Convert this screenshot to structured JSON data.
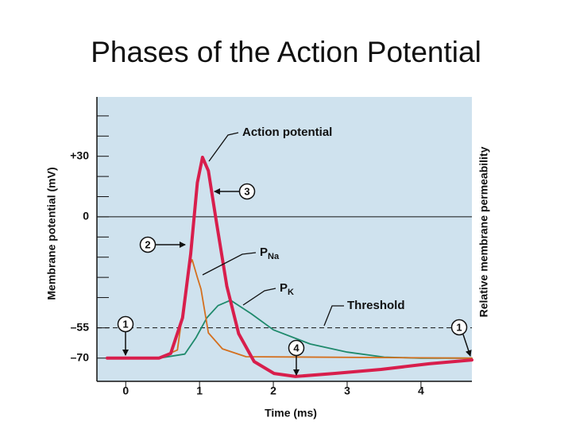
{
  "chart_data": {
    "type": "line",
    "title": "Phases of the Action Potential",
    "xlabel": "Time (ms)",
    "ylabel": "Membrane potential (mV)",
    "y2label": "Relative membrane permeability",
    "xlim": [
      -0.39,
      4.69
    ],
    "ylim": [
      -81.5,
      59.4
    ],
    "xticks": [
      0,
      1,
      2,
      3,
      4
    ],
    "yticks": [
      {
        "value": 30,
        "label": "+30"
      },
      0,
      {
        "value": -55,
        "label": "–55"
      },
      {
        "value": -70,
        "label": "–70"
      }
    ],
    "minor_yticks": [
      50,
      40,
      20,
      10,
      -10,
      -20,
      -30,
      -40
    ],
    "zero_line": 0,
    "threshold": {
      "value": -55,
      "label": "Threshold"
    },
    "series": [
      {
        "name": "Action potential",
        "color": "#d81e4c",
        "x": [
          -0.25,
          0.45,
          0.61,
          0.77,
          0.88,
          0.97,
          1.04,
          1.12,
          1.23,
          1.37,
          1.53,
          1.74,
          2.01,
          2.3,
          2.82,
          3.46,
          4.11,
          4.69
        ],
        "values": [
          -70,
          -70,
          -67.7,
          -50,
          -18.5,
          16.9,
          29.5,
          22.8,
          -2.8,
          -34.3,
          -57.9,
          -71.7,
          -77.6,
          -79.1,
          -77.6,
          -75.6,
          -72.8,
          -70.9
        ]
      },
      {
        "name": "P",
        "name_sub": "Na",
        "color": "#d4701f",
        "x": [
          -0.25,
          0.45,
          0.7,
          0.78,
          0.85,
          0.9,
          0.97,
          1.02,
          1.12,
          1.31,
          1.63,
          4.69
        ],
        "values": [
          -70,
          -70,
          -66,
          -45,
          -25,
          -21.3,
          -30,
          -35.8,
          -57.5,
          -65.4,
          -69.3,
          -70
        ]
      },
      {
        "name": "P",
        "name_sub": "K",
        "color": "#1f8a6c",
        "x": [
          -0.25,
          0.45,
          0.8,
          0.95,
          1.1,
          1.25,
          1.42,
          1.7,
          2.0,
          2.5,
          3.0,
          3.5,
          4.0,
          4.69
        ],
        "values": [
          -70,
          -70,
          -68,
          -60,
          -50,
          -44,
          -41.3,
          -48,
          -56,
          -63,
          -67,
          -69.5,
          -70,
          -70
        ]
      }
    ],
    "annotations": [
      "3",
      "2",
      "1",
      "4",
      "1"
    ]
  }
}
